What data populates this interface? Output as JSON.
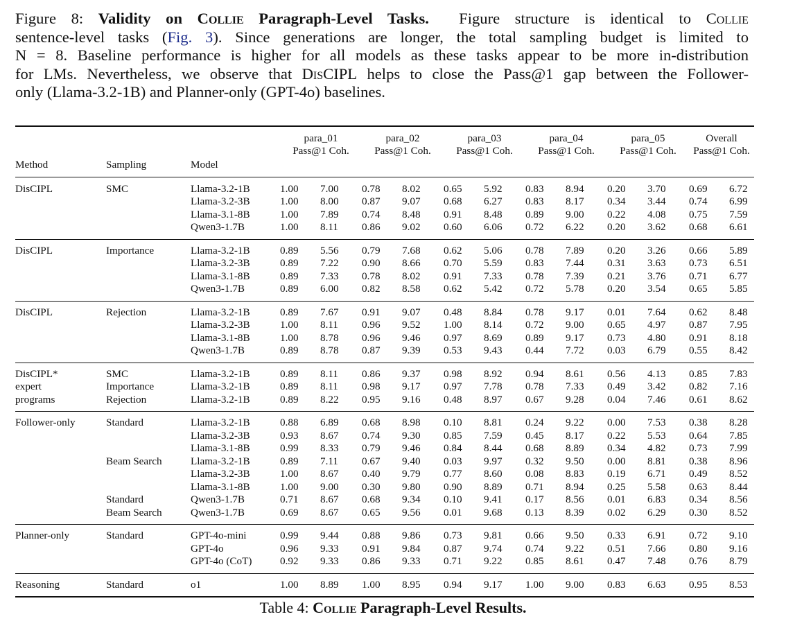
{
  "figure_caption": {
    "label": "Figure 8:",
    "title_a": "Validity on",
    "title_sc": "Collie",
    "title_b": "Paragraph-Level Tasks.",
    "l1_rest": "Figure structure is identical to",
    "l1_sc": "Collie",
    "l2_a": "sentence-level tasks (",
    "l2_ref": "Fig. 3",
    "l2_b": "). Since generations are longer, the total sampling budget is limited to",
    "l3": "N = 8. Baseline performance is higher for all models as these tasks appear to be more in-distribution",
    "l4_a": "for LMs. Nevertheless, we observe that",
    "l4_sc": "DisCIPL",
    "l4_b": "helps to close the Pass@1 gap between the Follower-",
    "l5": "only (Llama-3.2-1B) and Planner-only (GPT-4o) baselines."
  },
  "table": {
    "group_headers": [
      "para_01",
      "para_02",
      "para_03",
      "para_04",
      "para_05",
      "Overall"
    ],
    "sub_headers": [
      "Pass@1",
      "Coh."
    ],
    "col_headers": {
      "method": "Method",
      "sampling": "Sampling",
      "model": "Model"
    },
    "groups": [
      {
        "rows": [
          [
            "DisCIPL",
            "SMC",
            "Llama-3.2-1B",
            "1.00",
            "7.00",
            "0.78",
            "8.02",
            "0.65",
            "5.92",
            "0.83",
            "8.94",
            "0.20",
            "3.70",
            "0.69",
            "6.72"
          ],
          [
            "",
            "",
            "Llama-3.2-3B",
            "1.00",
            "8.00",
            "0.87",
            "9.07",
            "0.68",
            "6.27",
            "0.83",
            "8.17",
            "0.34",
            "3.44",
            "0.74",
            "6.99"
          ],
          [
            "",
            "",
            "Llama-3.1-8B",
            "1.00",
            "7.89",
            "0.74",
            "8.48",
            "0.91",
            "8.48",
            "0.89",
            "9.00",
            "0.22",
            "4.08",
            "0.75",
            "7.59"
          ],
          [
            "",
            "",
            "Qwen3-1.7B",
            "1.00",
            "8.11",
            "0.86",
            "9.02",
            "0.60",
            "6.06",
            "0.72",
            "6.22",
            "0.20",
            "3.62",
            "0.68",
            "6.61"
          ]
        ]
      },
      {
        "rows": [
          [
            "DisCIPL",
            "Importance",
            "Llama-3.2-1B",
            "0.89",
            "5.56",
            "0.79",
            "7.68",
            "0.62",
            "5.06",
            "0.78",
            "7.89",
            "0.20",
            "3.26",
            "0.66",
            "5.89"
          ],
          [
            "",
            "",
            "Llama-3.2-3B",
            "0.89",
            "7.22",
            "0.90",
            "8.66",
            "0.70",
            "5.59",
            "0.83",
            "7.44",
            "0.31",
            "3.63",
            "0.73",
            "6.51"
          ],
          [
            "",
            "",
            "Llama-3.1-8B",
            "0.89",
            "7.33",
            "0.78",
            "8.02",
            "0.91",
            "7.33",
            "0.78",
            "7.39",
            "0.21",
            "3.76",
            "0.71",
            "6.77"
          ],
          [
            "",
            "",
            "Qwen3-1.7B",
            "0.89",
            "6.00",
            "0.82",
            "8.58",
            "0.62",
            "5.42",
            "0.72",
            "5.78",
            "0.20",
            "3.54",
            "0.65",
            "5.85"
          ]
        ]
      },
      {
        "rows": [
          [
            "DisCIPL",
            "Rejection",
            "Llama-3.2-1B",
            "0.89",
            "7.67",
            "0.91",
            "9.07",
            "0.48",
            "8.84",
            "0.78",
            "9.17",
            "0.01",
            "7.64",
            "0.62",
            "8.48"
          ],
          [
            "",
            "",
            "Llama-3.2-3B",
            "1.00",
            "8.11",
            "0.96",
            "9.52",
            "1.00",
            "8.14",
            "0.72",
            "9.00",
            "0.65",
            "4.97",
            "0.87",
            "7.95"
          ],
          [
            "",
            "",
            "Llama-3.1-8B",
            "1.00",
            "8.78",
            "0.96",
            "9.46",
            "0.97",
            "8.69",
            "0.89",
            "9.17",
            "0.73",
            "4.80",
            "0.91",
            "8.18"
          ],
          [
            "",
            "",
            "Qwen3-1.7B",
            "0.89",
            "8.78",
            "0.87",
            "9.39",
            "0.53",
            "9.43",
            "0.44",
            "7.72",
            "0.03",
            "6.79",
            "0.55",
            "8.42"
          ]
        ]
      },
      {
        "rows": [
          [
            "DisCIPL*",
            "SMC",
            "Llama-3.2-1B",
            "0.89",
            "8.11",
            "0.86",
            "9.37",
            "0.98",
            "8.92",
            "0.94",
            "8.61",
            "0.56",
            "4.13",
            "0.85",
            "7.83"
          ],
          [
            "expert",
            "Importance",
            "Llama-3.2-1B",
            "0.89",
            "8.11",
            "0.98",
            "9.17",
            "0.97",
            "7.78",
            "0.78",
            "7.33",
            "0.49",
            "3.42",
            "0.82",
            "7.16"
          ],
          [
            "programs",
            "Rejection",
            "Llama-3.2-1B",
            "0.89",
            "8.22",
            "0.95",
            "9.16",
            "0.48",
            "8.97",
            "0.67",
            "9.28",
            "0.04",
            "7.46",
            "0.61",
            "8.62"
          ]
        ]
      },
      {
        "rows": [
          [
            "Follower-only",
            "Standard",
            "Llama-3.2-1B",
            "0.88",
            "6.89",
            "0.68",
            "8.98",
            "0.10",
            "8.81",
            "0.24",
            "9.22",
            "0.00",
            "7.53",
            "0.38",
            "8.28"
          ],
          [
            "",
            "",
            "Llama-3.2-3B",
            "0.93",
            "8.67",
            "0.74",
            "9.30",
            "0.85",
            "7.59",
            "0.45",
            "8.17",
            "0.22",
            "5.53",
            "0.64",
            "7.85"
          ],
          [
            "",
            "",
            "Llama-3.1-8B",
            "0.99",
            "8.33",
            "0.79",
            "9.46",
            "0.84",
            "8.44",
            "0.68",
            "8.89",
            "0.34",
            "4.82",
            "0.73",
            "7.99"
          ],
          [
            "",
            "Beam Search",
            "Llama-3.2-1B",
            "0.89",
            "7.11",
            "0.67",
            "9.40",
            "0.03",
            "9.97",
            "0.32",
            "9.50",
            "0.00",
            "8.81",
            "0.38",
            "8.96"
          ],
          [
            "",
            "",
            "Llama-3.2-3B",
            "1.00",
            "8.67",
            "0.40",
            "9.79",
            "0.77",
            "8.60",
            "0.08",
            "8.83",
            "0.19",
            "6.71",
            "0.49",
            "8.52"
          ],
          [
            "",
            "",
            "Llama-3.1-8B",
            "1.00",
            "9.00",
            "0.30",
            "9.80",
            "0.90",
            "8.89",
            "0.71",
            "8.94",
            "0.25",
            "5.58",
            "0.63",
            "8.44"
          ],
          [
            "",
            "Standard",
            "Qwen3-1.7B",
            "0.71",
            "8.67",
            "0.68",
            "9.34",
            "0.10",
            "9.41",
            "0.17",
            "8.56",
            "0.01",
            "6.83",
            "0.34",
            "8.56"
          ],
          [
            "",
            "Beam Search",
            "Qwen3-1.7B",
            "0.69",
            "8.67",
            "0.65",
            "9.56",
            "0.01",
            "9.68",
            "0.13",
            "8.39",
            "0.02",
            "6.29",
            "0.30",
            "8.52"
          ]
        ]
      },
      {
        "rows": [
          [
            "Planner-only",
            "Standard",
            "GPT-4o-mini",
            "0.99",
            "9.44",
            "0.88",
            "9.86",
            "0.73",
            "9.81",
            "0.66",
            "9.50",
            "0.33",
            "6.91",
            "0.72",
            "9.10"
          ],
          [
            "",
            "",
            "GPT-4o",
            "0.96",
            "9.33",
            "0.91",
            "9.84",
            "0.87",
            "9.74",
            "0.74",
            "9.22",
            "0.51",
            "7.66",
            "0.80",
            "9.16"
          ],
          [
            "",
            "",
            "GPT-4o (CoT)",
            "0.92",
            "9.33",
            "0.86",
            "9.33",
            "0.71",
            "9.22",
            "0.85",
            "8.61",
            "0.47",
            "7.48",
            "0.76",
            "8.79"
          ]
        ]
      },
      {
        "rows": [
          [
            "Reasoning",
            "Standard",
            "o1",
            "1.00",
            "8.89",
            "1.00",
            "8.95",
            "0.94",
            "9.17",
            "1.00",
            "9.00",
            "0.83",
            "6.63",
            "0.95",
            "8.53"
          ]
        ]
      }
    ]
  },
  "table_caption": {
    "label": "Table 4:",
    "sc": "Collie",
    "rest": "Paragraph-Level Results."
  }
}
